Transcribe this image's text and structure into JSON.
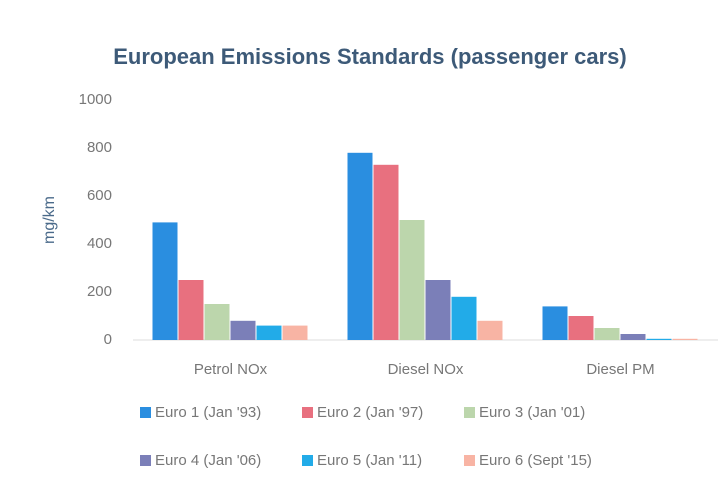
{
  "chart_data": {
    "type": "bar",
    "title": "European Emissions Standards (passenger cars)",
    "y_label": "mg/km",
    "categories": [
      "Petrol NOx",
      "Diesel NOx",
      "Diesel PM"
    ],
    "series": [
      {
        "name": "Euro 1 (Jan '93)",
        "color": "#2a8ee0",
        "values": [
          490,
          780,
          140
        ]
      },
      {
        "name": "Euro 2 (Jan '97)",
        "color": "#e8707f",
        "values": [
          250,
          730,
          100
        ]
      },
      {
        "name": "Euro 3 (Jan '01)",
        "color": "#bcd6ac",
        "values": [
          150,
          500,
          50
        ]
      },
      {
        "name": "Euro 4 (Jan '06)",
        "color": "#7b7fb8",
        "values": [
          80,
          250,
          25
        ]
      },
      {
        "name": "Euro 5 (Jan '11)",
        "color": "#22abe8",
        "values": [
          60,
          180,
          5
        ]
      },
      {
        "name": "Euro 6 (Sept '15)",
        "color": "#f8b4a4",
        "values": [
          60,
          80,
          5
        ]
      }
    ],
    "ylim": [
      0,
      1000
    ],
    "yticks": [
      0,
      200,
      400,
      600,
      800,
      1000
    ],
    "grid": false
  }
}
